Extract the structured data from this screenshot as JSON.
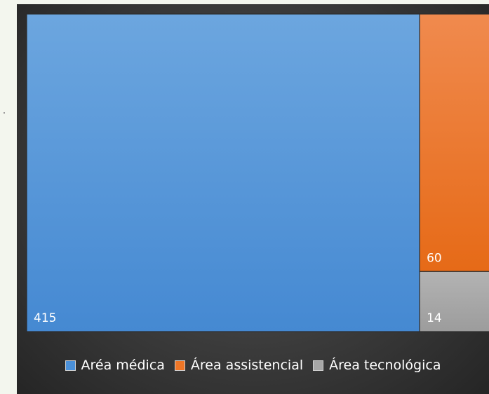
{
  "chart_data": {
    "type": "treemap",
    "title": "",
    "items": [
      {
        "name": "Aréa médica",
        "value": 415,
        "color": "#4a90d9"
      },
      {
        "name": "Área assistencial",
        "value": 60,
        "color": "#ef7626"
      },
      {
        "name": "Área tecnológica",
        "value": 14,
        "color": "#a6a6a6"
      }
    ],
    "legend_position": "bottom"
  }
}
